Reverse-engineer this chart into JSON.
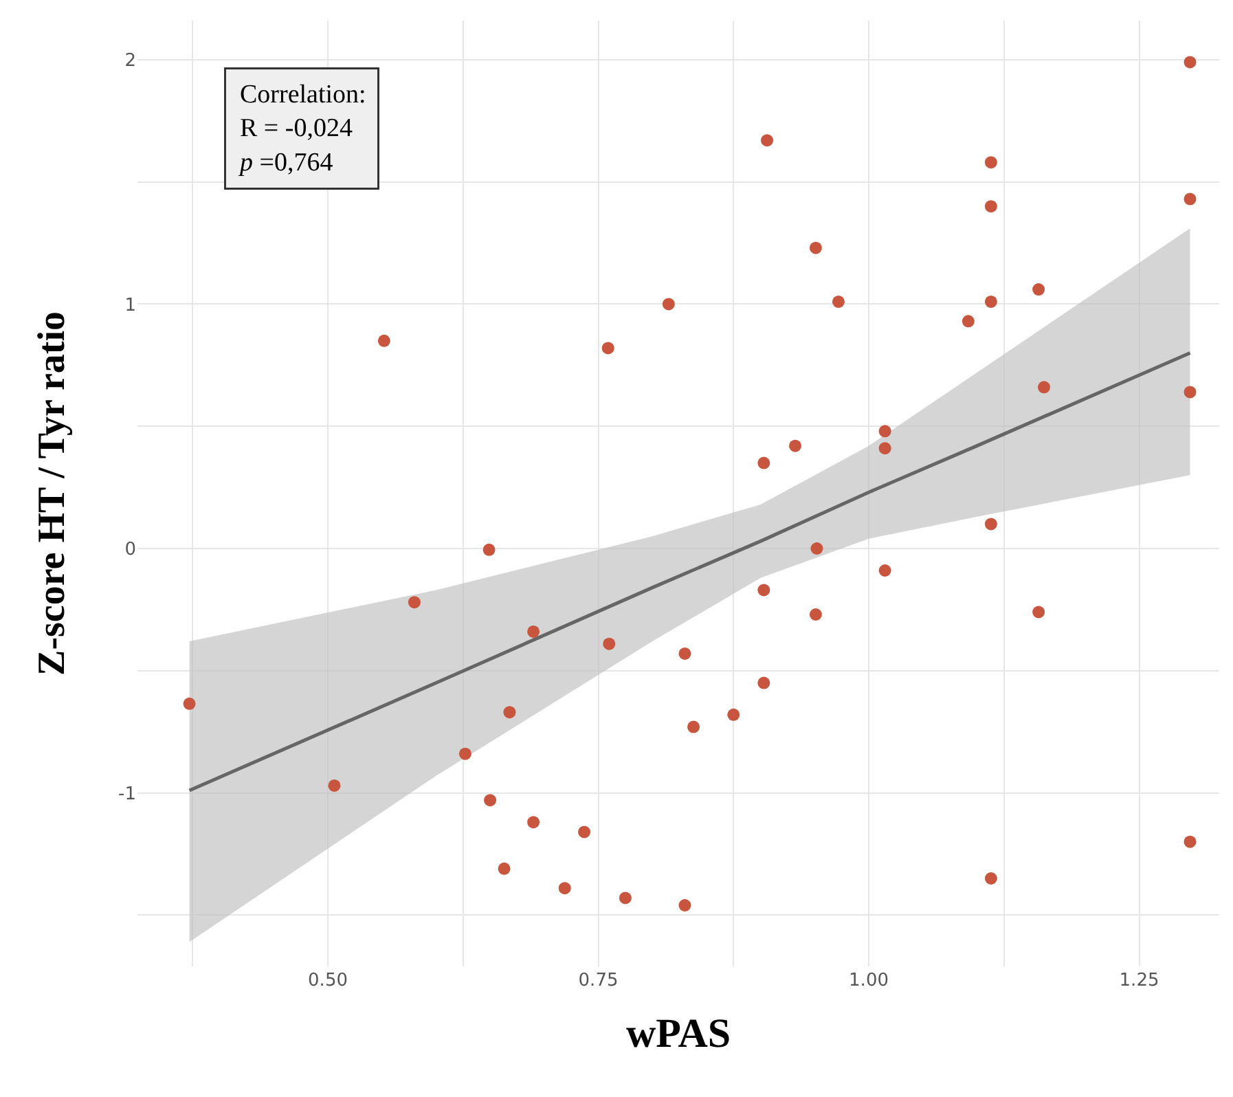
{
  "chart_data": {
    "type": "scatter",
    "xlabel": "wPAS",
    "ylabel": "Z-score HT / Tyr ratio",
    "annotations": [
      "Correlation:\nR = -0,024\np =0,764"
    ],
    "xlim": [
      0.324,
      1.324
    ],
    "ylim": [
      -1.71,
      2.16
    ],
    "xticks": [
      {
        "value": 0.375,
        "label": null
      },
      {
        "value": 0.5,
        "label": "0.50"
      },
      {
        "value": 0.625,
        "label": null
      },
      0.75,
      {
        "value": 0.875,
        "label": null
      },
      {
        "value": 1,
        "label": "1.00"
      },
      {
        "value": 1.125,
        "label": null
      },
      1.25
    ],
    "yticks": [
      {
        "value": -1.5,
        "label": null
      },
      -1,
      {
        "value": -0.5,
        "label": null
      },
      0,
      {
        "value": 0.5,
        "label": null
      },
      1,
      {
        "value": 1.5,
        "label": null
      },
      2
    ],
    "grid": true,
    "marker": "circle",
    "series": [
      {
        "type": "line",
        "color": "#666666",
        "x": [
          0.372,
          0.6,
          0.8,
          0.9,
          1.0,
          1.1,
          1.297
        ],
        "values": [
          -0.99,
          -0.55,
          -0.16,
          0.03,
          0.23,
          0.42,
          0.8
        ],
        "lower": [
          -1.61,
          -0.93,
          -0.38,
          -0.12,
          0.04,
          0.13,
          0.3
        ],
        "upper": [
          -0.38,
          -0.17,
          0.05,
          0.18,
          0.42,
          0.72,
          1.31
        ],
        "line_style": "solid",
        "marker": "none"
      },
      {
        "color": "#c8553d",
        "x": [
          0.372,
          0.506,
          0.552,
          0.58,
          0.649,
          0.65,
          0.627,
          0.663,
          0.668,
          0.69,
          0.69,
          0.719,
          0.737,
          0.759,
          0.76,
          0.775,
          0.815,
          0.83,
          0.83,
          0.838,
          0.875,
          0.903,
          0.903,
          0.903,
          0.906,
          0.932,
          0.951,
          0.952,
          0.951,
          0.972,
          1.015,
          1.015,
          1.015,
          1.092,
          1.113,
          1.113,
          1.113,
          1.113,
          1.113,
          1.157,
          1.157,
          1.162,
          1.297,
          1.297,
          1.297,
          1.297
        ],
        "values": [
          -0.635,
          -0.97,
          0.85,
          -0.22,
          -0.005,
          -1.03,
          -0.84,
          -1.31,
          -0.67,
          -0.34,
          -1.12,
          -1.39,
          -1.16,
          0.82,
          -0.39,
          -1.43,
          1.0,
          -0.43,
          -1.46,
          -0.73,
          -0.68,
          0.35,
          -0.17,
          -0.55,
          1.67,
          0.42,
          1.23,
          0.0,
          -0.27,
          1.01,
          0.48,
          0.41,
          -0.09,
          0.93,
          1.58,
          1.4,
          1.01,
          0.1,
          -1.35,
          1.06,
          -0.26,
          0.66,
          1.99,
          1.43,
          0.64,
          -1.2
        ]
      }
    ]
  }
}
